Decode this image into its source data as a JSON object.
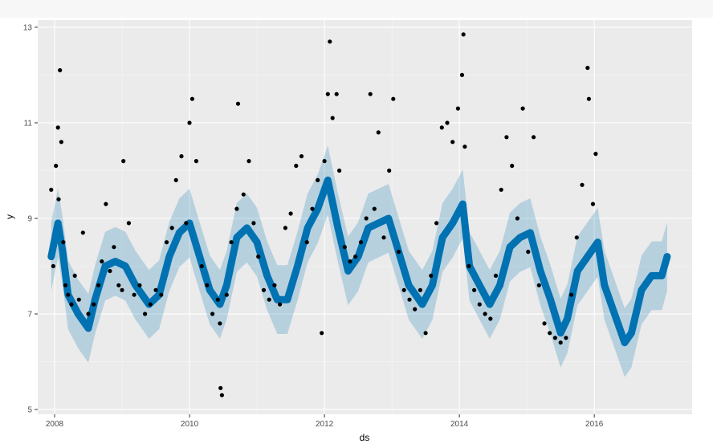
{
  "chart_data": {
    "type": "line",
    "title": "",
    "xlabel": "ds",
    "ylabel": "y",
    "xlim": [
      2007.75,
      2017.45
    ],
    "ylim": [
      4.9,
      13.15
    ],
    "x_ticks": [
      2008,
      2010,
      2012,
      2014,
      2016
    ],
    "x_tick_labels": [
      "2008",
      "2010",
      "2012",
      "2014",
      "2016"
    ],
    "y_ticks": [
      5,
      7,
      9,
      11,
      13
    ],
    "y_tick_labels": [
      "5",
      "7",
      "9",
      "11",
      "13"
    ],
    "grid": true,
    "legend": "none",
    "series": [
      {
        "kind": "forecast",
        "x": [
          2007.95,
          2008.05,
          2008.12,
          2008.2,
          2008.35,
          2008.5,
          2008.6,
          2008.75,
          2008.9,
          2009.05,
          2009.2,
          2009.4,
          2009.55,
          2009.7,
          2009.85,
          2010.0,
          2010.15,
          2010.3,
          2010.45,
          2010.55,
          2010.7,
          2010.85,
          2011.0,
          2011.15,
          2011.3,
          2011.45,
          2011.6,
          2011.75,
          2011.9,
          2012.05,
          2012.2,
          2012.35,
          2012.5,
          2012.65,
          2012.8,
          2012.95,
          2013.1,
          2013.25,
          2013.45,
          2013.6,
          2013.75,
          2013.9,
          2014.05,
          2014.15,
          2014.3,
          2014.45,
          2014.6,
          2014.75,
          2014.9,
          2015.05,
          2015.2,
          2015.35,
          2015.5,
          2015.6,
          2015.75,
          2015.9,
          2016.05,
          2016.15,
          2016.3,
          2016.45,
          2016.55,
          2016.7,
          2016.85,
          2017.0,
          2017.08
        ],
        "yhat": [
          8.2,
          8.9,
          8.3,
          7.4,
          7.0,
          6.7,
          7.3,
          8.0,
          8.1,
          8.0,
          7.6,
          7.2,
          7.4,
          8.2,
          8.7,
          8.9,
          8.2,
          7.5,
          7.2,
          7.6,
          8.6,
          8.8,
          8.5,
          7.8,
          7.3,
          7.3,
          8.0,
          8.8,
          9.2,
          9.8,
          8.8,
          7.9,
          8.2,
          8.8,
          8.9,
          9.0,
          8.3,
          7.6,
          7.2,
          7.6,
          8.6,
          8.9,
          9.3,
          8.0,
          7.6,
          7.2,
          7.6,
          8.4,
          8.6,
          8.7,
          7.9,
          7.3,
          6.6,
          6.9,
          7.9,
          8.2,
          8.5,
          7.6,
          7.0,
          6.4,
          6.6,
          7.5,
          7.8,
          7.8,
          8.2
        ]
      },
      {
        "kind": "observed",
        "x": [
          2007.95,
          2007.98,
          2008.02,
          2008.05,
          2008.06,
          2008.08,
          2008.1,
          2008.13,
          2008.16,
          2008.2,
          2008.25,
          2008.3,
          2008.36,
          2008.42,
          2008.5,
          2008.58,
          2008.65,
          2008.7,
          2008.76,
          2008.82,
          2008.88,
          2008.95,
          2009.0,
          2009.02,
          2009.1,
          2009.18,
          2009.26,
          2009.34,
          2009.42,
          2009.5,
          2009.58,
          2009.66,
          2009.74,
          2009.8,
          2009.88,
          2009.95,
          2010.0,
          2010.04,
          2010.1,
          2010.18,
          2010.26,
          2010.34,
          2010.42,
          2010.45,
          2010.46,
          2010.48,
          2010.55,
          2010.62,
          2010.7,
          2010.72,
          2010.8,
          2010.88,
          2010.95,
          2011.02,
          2011.1,
          2011.18,
          2011.26,
          2011.34,
          2011.42,
          2011.5,
          2011.58,
          2011.66,
          2011.74,
          2011.82,
          2011.9,
          2011.96,
          2012.0,
          2012.05,
          2012.08,
          2012.12,
          2012.18,
          2012.22,
          2012.3,
          2012.38,
          2012.46,
          2012.54,
          2012.62,
          2012.68,
          2012.74,
          2012.8,
          2012.88,
          2012.96,
          2013.02,
          2013.1,
          2013.18,
          2013.26,
          2013.34,
          2013.42,
          2013.5,
          2013.58,
          2013.66,
          2013.74,
          2013.82,
          2013.9,
          2013.98,
          2014.04,
          2014.06,
          2014.08,
          2014.14,
          2014.22,
          2014.3,
          2014.38,
          2014.46,
          2014.54,
          2014.62,
          2014.7,
          2014.78,
          2014.86,
          2014.94,
          2015.02,
          2015.1,
          2015.18,
          2015.26,
          2015.34,
          2015.42,
          2015.5,
          2015.58,
          2015.66,
          2015.74,
          2015.82,
          2015.9,
          2015.92,
          2015.98,
          2016.02
        ],
        "y": [
          9.6,
          8.0,
          10.1,
          10.9,
          9.4,
          12.1,
          10.6,
          8.5,
          7.6,
          7.4,
          7.2,
          7.8,
          7.3,
          8.7,
          7.0,
          7.2,
          7.6,
          8.1,
          9.3,
          7.9,
          8.4,
          7.6,
          7.5,
          10.2,
          8.9,
          7.4,
          7.6,
          7.0,
          7.2,
          7.5,
          7.4,
          8.5,
          8.8,
          9.8,
          10.3,
          8.9,
          11.0,
          11.5,
          10.2,
          8.0,
          7.6,
          7.0,
          7.3,
          6.8,
          5.45,
          5.3,
          7.4,
          8.5,
          9.2,
          11.4,
          9.5,
          10.2,
          8.9,
          8.2,
          7.5,
          7.3,
          7.6,
          7.2,
          8.8,
          9.1,
          10.1,
          10.3,
          8.5,
          9.2,
          9.8,
          6.6,
          10.2,
          11.6,
          12.7,
          11.1,
          11.6,
          10.0,
          8.4,
          8.1,
          8.2,
          8.5,
          9.0,
          11.6,
          9.2,
          10.8,
          8.6,
          10.0,
          11.5,
          8.3,
          7.5,
          7.3,
          7.1,
          7.5,
          6.6,
          7.8,
          8.9,
          10.9,
          11.0,
          10.6,
          11.3,
          12.0,
          12.85,
          10.5,
          8.0,
          7.5,
          7.2,
          7.0,
          6.9,
          7.8,
          9.6,
          10.7,
          10.1,
          9.0,
          11.3,
          8.3,
          10.7,
          7.6,
          6.8,
          6.6,
          6.5,
          6.4,
          6.5,
          7.4,
          8.6,
          9.7,
          12.15,
          11.5,
          9.3,
          10.35
        ]
      }
    ]
  }
}
